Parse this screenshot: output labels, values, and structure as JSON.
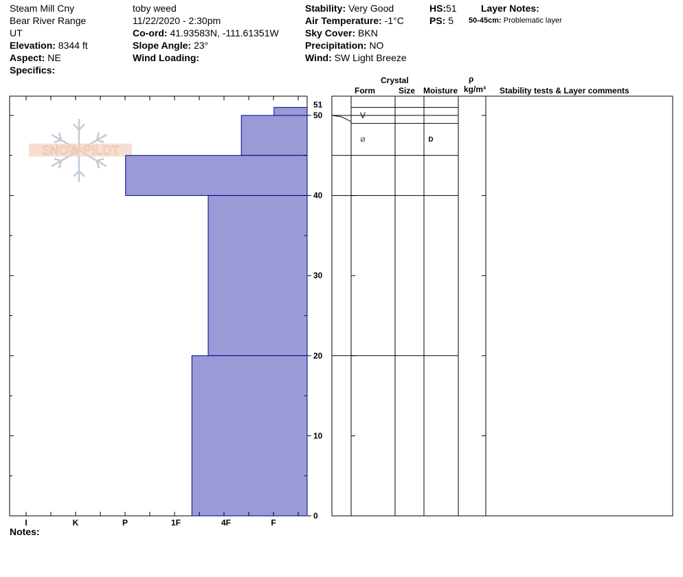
{
  "header": {
    "location": "Steam Mill Cny",
    "range": "Bear River Range",
    "state": "UT",
    "elevation_label": "Elevation:",
    "elevation": "8344 ft",
    "aspect_label": "Aspect:",
    "aspect": "NE",
    "specifics_label": "Specifics:",
    "observer": "toby weed",
    "datetime": "11/22/2020 - 2:30pm",
    "coord_label": "Co-ord:",
    "coord": "41.93583N, -111.61351W",
    "slope_label": "Slope Angle:",
    "slope": "23°",
    "wind_loading_label": "Wind Loading:",
    "stability_label": "Stability:",
    "stability": "Very Good",
    "air_temp_label": "Air Temperature:",
    "air_temp": "-1°C",
    "sky_label": "Sky Cover:",
    "sky": "BKN",
    "precip_label": "Precipitation:",
    "precip": "NO",
    "wind_label": "Wind:",
    "wind": "SW Light Breeze",
    "hs_label": "HS:",
    "hs": "51",
    "ps_label": "PS:",
    "ps": "5",
    "layer_notes_label": "Layer Notes:",
    "layer_note_range": "50-45cm:",
    "layer_note_text": "Problematic layer"
  },
  "logo_text": "SNOW PILOT",
  "columns": {
    "crystal": "Crystal",
    "form": "Form",
    "size": "Size",
    "moisture": "Moisture",
    "rho": "ρ",
    "density_unit": "kg/m³",
    "stability_comments": "Stability tests & Layer comments"
  },
  "notes_label": "Notes:",
  "colors": {
    "layer_fill": "#9a9ad6",
    "layer_stroke": "#00008b"
  },
  "chart_data": {
    "type": "bar",
    "orientation": "horizontal",
    "description_axis": "hardness",
    "hardness_scale": [
      "F",
      "4F",
      "1F",
      "P",
      "K",
      "I"
    ],
    "x_tick_labels": [
      "I",
      "K",
      "P",
      "1F",
      "4F",
      "F"
    ],
    "y_ticks": [
      0,
      10,
      20,
      30,
      40,
      50,
      51
    ],
    "ylim": [
      0,
      51
    ],
    "layers": [
      {
        "top": 51,
        "bottom": 50,
        "hardness": "F-"
      },
      {
        "top": 50,
        "bottom": 45,
        "hardness": "F+"
      },
      {
        "top": 45,
        "bottom": 40,
        "hardness": "P-"
      },
      {
        "top": 40,
        "bottom": 20,
        "hardness": "4F"
      },
      {
        "top": 20,
        "bottom": 0,
        "hardness": "4F+"
      }
    ],
    "hardness_index": {
      "F-": 0.67,
      "F+": 1.33,
      "P-": 3.67,
      "4F": 2.0,
      "4F+": 2.33
    },
    "layer_boundaries_right": [
      51,
      50,
      49,
      45,
      40,
      20
    ],
    "surface_hoar_marker": "V",
    "grain_form_symbol": "⧄",
    "moisture": "D"
  }
}
